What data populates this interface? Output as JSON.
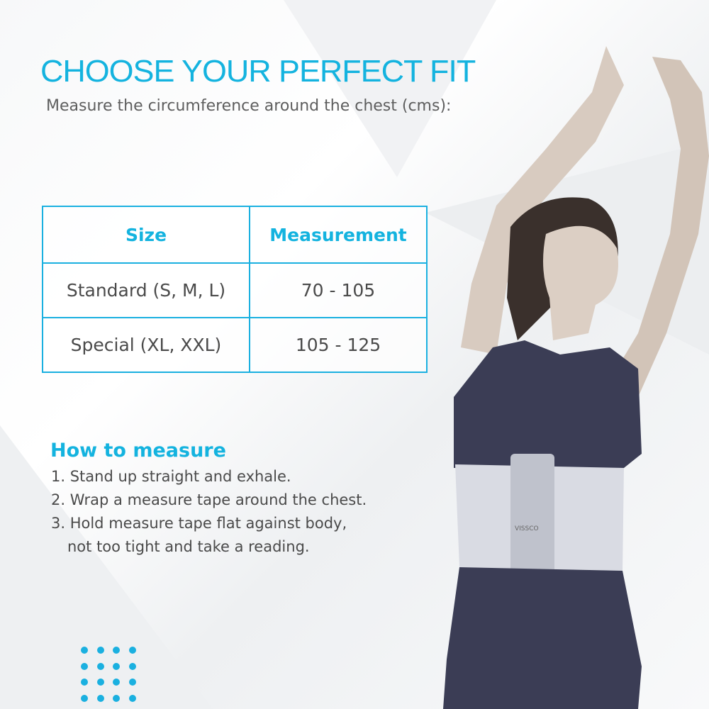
{
  "heading": "CHOOSE YOUR PERFECT FIT",
  "subheading": "Measure the circumference around the chest (cms):",
  "table": {
    "headers": [
      "Size",
      "Measurement"
    ],
    "rows": [
      [
        "Standard (S, M, L)",
        "70 - 105"
      ],
      [
        "Special (XL, XXL)",
        "105 - 125"
      ]
    ]
  },
  "how_to": {
    "title": "How to measure",
    "steps": [
      "1. Stand up straight and exhale.",
      "2. Wrap a measure tape around the chest.",
      "3. Hold measure tape flat against body,",
      "not too tight and take a reading."
    ]
  },
  "product_brand": "VISSCO",
  "colors": {
    "accent": "#14b3df",
    "text": "#4a4a4a",
    "garment": "#3b3d55",
    "belt": "#d9dbe3"
  }
}
